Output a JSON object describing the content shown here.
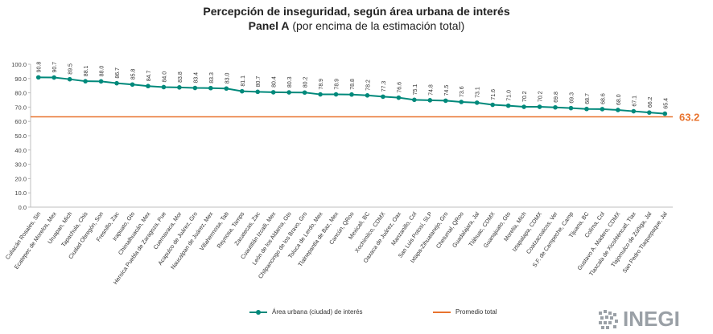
{
  "header": {
    "title": "Percepción de inseguridad, según área urbana de interés",
    "panel": "Panel A",
    "panel_note": "(por encima de la estimación total)"
  },
  "legend": {
    "series_label": "Área urbana (ciudad) de interés",
    "average_label": "Promedio total"
  },
  "logo": {
    "text": "INEGI"
  },
  "colors": {
    "series": "#00897b",
    "average": "#e8732e",
    "grid": "#d9d9d9"
  },
  "chart_data": {
    "type": "line",
    "title": "Percepción de inseguridad, según área urbana de interés",
    "subtitle": "Panel A (por encima de la estimación total)",
    "xlabel": "",
    "ylabel": "",
    "ylim": [
      0,
      100
    ],
    "yticks": [
      "0.0",
      "10.0",
      "20.0",
      "30.0",
      "40.0",
      "50.0",
      "60.0",
      "70.0",
      "80.0",
      "90.0",
      "100.0"
    ],
    "grid": false,
    "legend_position": "bottom",
    "categories": [
      "Culiacán Rosales, Sin",
      "Ecatepec de Morelos, Mex",
      "Uruapan, Mich",
      "Tapachula, Chis",
      "Ciudad Obregón, Son",
      "Fresnillo, Zac",
      "Irapuato, Gto",
      "Chimalhuacán, Mex",
      "Heroica Puebla de Zaragoza, Pue",
      "Cuernavaca, Mor",
      "Acapulco de Juárez, Gro",
      "Naucalpan de Juárez, Mex",
      "Villahermosa, Tab",
      "Reynosa, Tamps",
      "Zacatecas, Zac",
      "Cuautitlán Izcalli, Mex",
      "León de los Aldama, Gto",
      "Chilpancingo de los Bravo, Gro",
      "Toluca de Lerdo, Mex",
      "Tlalnepantla de Baz, Mex",
      "Cancún, QRoo",
      "Mexicali, BC",
      "Xochimilco, CDMX",
      "Oaxaca de Juárez, Oax",
      "Manzanillo, Col",
      "San Luis Potosí, SLP",
      "Ixtapa-Zihuatanejo, Gro",
      "Chetumal, QRoo",
      "Guadalajara, Jal",
      "Tláhuac, CDMX",
      "Guanajuato, Gto",
      "Morelia, Mich",
      "Iztapalapa, CDMX",
      "Coatzacoalcos, Ver",
      "S.F. de Campeche, Camp",
      "Tijuana, BC",
      "Colima, Col",
      "Gustavo A. Madero, CDMX",
      "Tlaxcala de Xicohténcatl, Tlax",
      "Tlajomulco de Zúñiga, Jal",
      "San Pedro Tlaquepaque, Jal"
    ],
    "series": [
      {
        "name": "Área urbana (ciudad) de interés",
        "values": [
          90.8,
          90.7,
          89.5,
          88.1,
          88.0,
          86.7,
          85.8,
          84.7,
          84.0,
          83.8,
          83.4,
          83.3,
          83.0,
          81.1,
          80.7,
          80.4,
          80.3,
          80.2,
          78.9,
          78.9,
          78.8,
          78.2,
          77.3,
          76.6,
          75.1,
          74.8,
          74.5,
          73.6,
          73.1,
          71.6,
          71.0,
          70.2,
          70.2,
          69.8,
          69.3,
          68.7,
          68.6,
          68.0,
          67.1,
          66.2,
          65.4
        ],
        "labels": [
          "90.8",
          "90.7",
          "89.5",
          "88.1",
          "88.0",
          "86.7",
          "85.8",
          "84.7",
          "84.0",
          "83.8",
          "83.4",
          "83.3",
          "83.0",
          "81.1",
          "80.7",
          "80.4",
          "80.3",
          "80.2",
          "78.9",
          "78.9",
          "78.8",
          "78.2",
          "77.3",
          "76.6",
          "75.1",
          "74.8",
          "74.5",
          "73.6",
          "73.1",
          "71.6",
          "71.0",
          "70.2",
          "70.2",
          "69.8",
          "69.3",
          "68.7",
          "68.6",
          "68.0",
          "67.1",
          "66.2",
          "65.4"
        ]
      }
    ],
    "average": {
      "name": "Promedio total",
      "value": 63.2,
      "label": "63.2"
    }
  }
}
